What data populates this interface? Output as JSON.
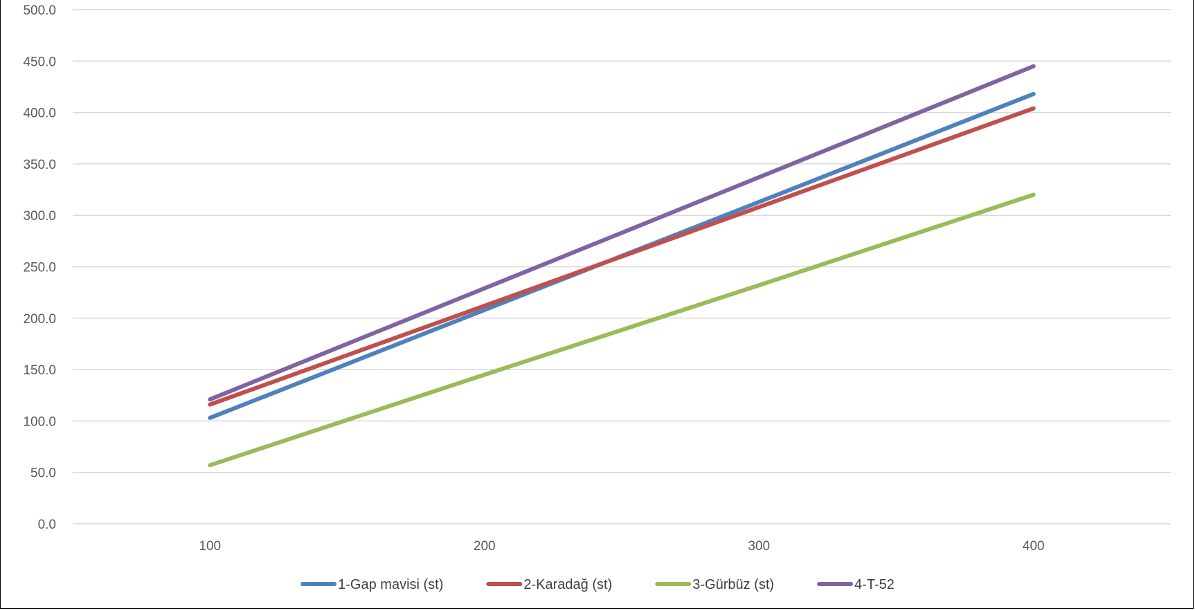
{
  "chart_data": {
    "type": "line",
    "title": "",
    "xlabel": "",
    "ylabel": "",
    "x": [
      100,
      200,
      300,
      400
    ],
    "x_tick_labels": [
      "100",
      "200",
      "300",
      "400"
    ],
    "y_tick_labels": [
      "0.0",
      "50.0",
      "100.0",
      "150.0",
      "200.0",
      "250.0",
      "300.0",
      "350.0",
      "400.0",
      "450.0",
      "500.0"
    ],
    "ylim": [
      0,
      500
    ],
    "xlim": [
      50,
      450
    ],
    "grid": true,
    "legend_position": "bottom",
    "series": [
      {
        "name": "1-Gap mavisi (st)",
        "color": "#4F81BD",
        "values": [
          103,
          208,
          313,
          418
        ]
      },
      {
        "name": "2-Karadağ (st)",
        "color": "#C0504D",
        "values": [
          116,
          212,
          308,
          404
        ]
      },
      {
        "name": "3-Gürbüz (st)",
        "color": "#9BBB59",
        "values": [
          57,
          145,
          232,
          320
        ]
      },
      {
        "name": "4-T-52",
        "color": "#8064A2",
        "values": [
          121,
          229,
          337,
          445
        ]
      }
    ]
  }
}
